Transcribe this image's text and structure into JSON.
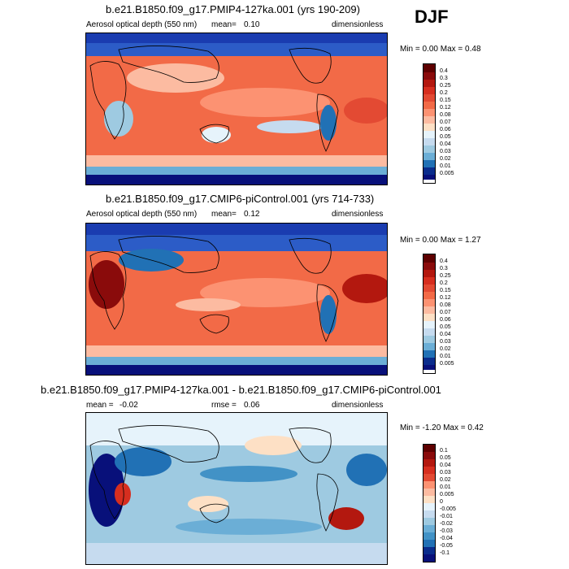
{
  "season_label": "DJF",
  "colors": {
    "abs_scale": [
      "#e6f3fb",
      "#c6dbef",
      "#9ecae1",
      "#6baed6",
      "#4292c6",
      "#2171b5",
      "#08519c",
      "#0a2c8c",
      "#08107a"
    ],
    "warm_scale": [
      "#fde0c5",
      "#fcbba1",
      "#fc9272",
      "#f26a47",
      "#e34a33",
      "#d62e1f",
      "#b3180f",
      "#8a0b0b",
      "#5e0000"
    ],
    "land_line": "#000000"
  },
  "panels": [
    {
      "title": "b.e21.B1850.f09_g17.PMIP4-127ka.001 (yrs 190-209)",
      "variable": "Aerosol optical depth (550 nm)",
      "stat_label": "mean=",
      "stat_value": "0.10",
      "stat2_label": "",
      "stat2_value": "",
      "units": "dimensionless",
      "range_text": "Min =   0.00 Max =   0.48",
      "colorbar_ticks": [
        "0.4",
        "0.3",
        "0.25",
        "0.2",
        "0.15",
        "0.12",
        "0.08",
        "0.07",
        "0.06",
        "0.05",
        "0.04",
        "0.03",
        "0.02",
        "0.01",
        "0.005"
      ]
    },
    {
      "title": "b.e21.B1850.f09_g17.CMIP6-piControl.001 (yrs 714-733)",
      "variable": "Aerosol optical depth (550 nm)",
      "stat_label": "mean=",
      "stat_value": "0.12",
      "stat2_label": "",
      "stat2_value": "",
      "units": "dimensionless",
      "range_text": "Min =   0.00 Max =   1.27",
      "colorbar_ticks": [
        "0.4",
        "0.3",
        "0.25",
        "0.2",
        "0.15",
        "0.12",
        "0.08",
        "0.07",
        "0.06",
        "0.05",
        "0.04",
        "0.03",
        "0.02",
        "0.01",
        "0.005"
      ]
    },
    {
      "title": "b.e21.B1850.f09_g17.PMIP4-127ka.001 - b.e21.B1850.f09_g17.CMIP6-piControl.001",
      "variable": "",
      "stat_label": "mean =",
      "stat_value": "-0.02",
      "stat2_label": "rmse =",
      "stat2_value": "0.06",
      "units": "dimensionless",
      "range_text": "Min =  -1.20 Max =   0.42",
      "colorbar_ticks": [
        "0.1",
        "0.05",
        "0.04",
        "0.03",
        "0.02",
        "0.01",
        "0.005",
        "0",
        "-0.005",
        "-0.01",
        "-0.02",
        "-0.03",
        "-0.04",
        "-0.05",
        "-0.1"
      ]
    }
  ],
  "chart_data": [
    {
      "type": "heatmap",
      "title": "b.e21.B1850.f09_g17.PMIP4-127ka.001 (yrs 190-209)",
      "variable": "Aerosol optical depth (550 nm)",
      "units": "dimensionless",
      "season": "DJF",
      "mean": 0.1,
      "min": 0.0,
      "max": 0.48,
      "contour_levels": [
        0.005,
        0.01,
        0.02,
        0.03,
        0.04,
        0.05,
        0.06,
        0.07,
        0.08,
        0.12,
        0.15,
        0.2,
        0.25,
        0.3,
        0.4
      ]
    },
    {
      "type": "heatmap",
      "title": "b.e21.B1850.f09_g17.CMIP6-piControl.001 (yrs 714-733)",
      "variable": "Aerosol optical depth (550 nm)",
      "units": "dimensionless",
      "season": "DJF",
      "mean": 0.12,
      "min": 0.0,
      "max": 1.27,
      "contour_levels": [
        0.005,
        0.01,
        0.02,
        0.03,
        0.04,
        0.05,
        0.06,
        0.07,
        0.08,
        0.12,
        0.15,
        0.2,
        0.25,
        0.3,
        0.4
      ]
    },
    {
      "type": "heatmap",
      "title": "b.e21.B1850.f09_g17.PMIP4-127ka.001 - b.e21.B1850.f09_g17.CMIP6-piControl.001",
      "units": "dimensionless",
      "season": "DJF",
      "mean": -0.02,
      "rmse": 0.06,
      "min": -1.2,
      "max": 0.42,
      "contour_levels": [
        -0.1,
        -0.05,
        -0.04,
        -0.03,
        -0.02,
        -0.01,
        -0.005,
        0,
        0.005,
        0.01,
        0.02,
        0.03,
        0.04,
        0.05,
        0.1
      ]
    }
  ]
}
